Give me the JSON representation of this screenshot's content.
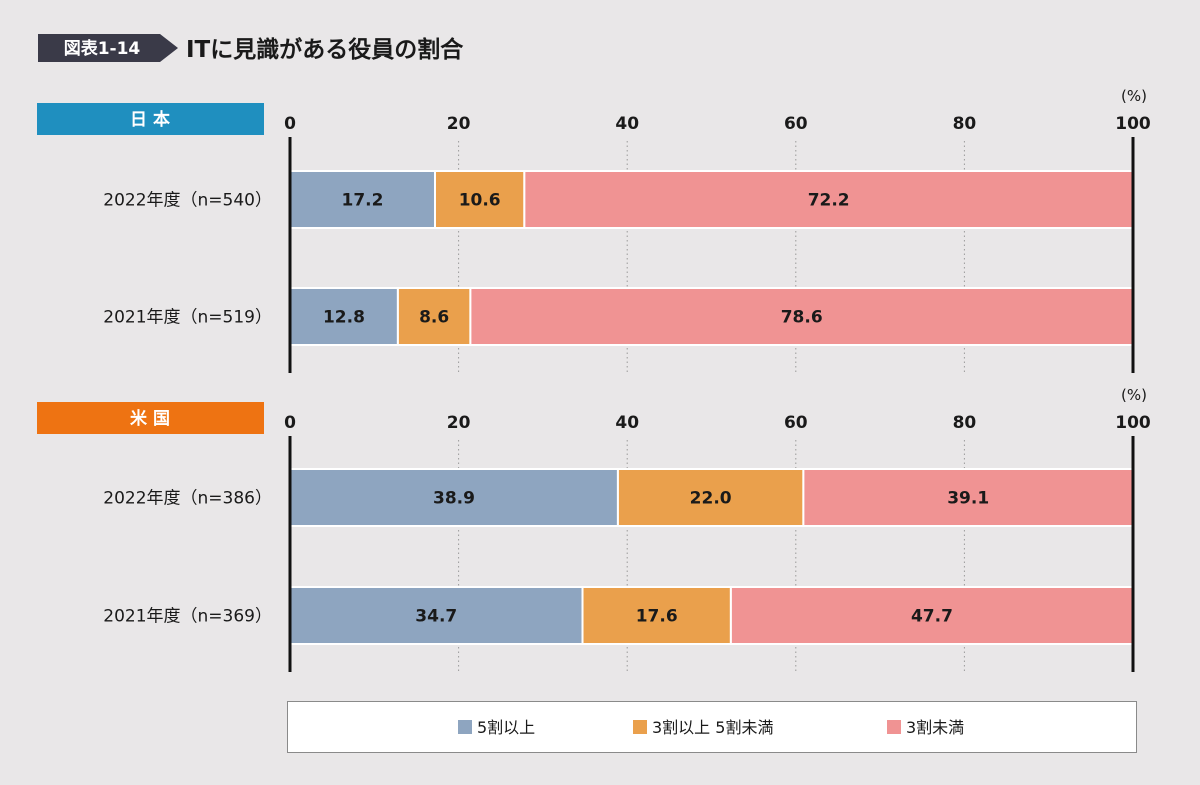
{
  "figure": {
    "label": "図表1-14",
    "title": "ITに見識がある役員の割合"
  },
  "colors": {
    "label_bg": "#3a3a48",
    "japan_header": "#1f8fbf",
    "us_header": "#ee7312",
    "series_5plus": "#8ea5c0",
    "series_3to5": "#eaa04c",
    "series_under3": "#f09393",
    "axis": "#111111",
    "grid": "#9a9a9a"
  },
  "chart_data": [
    {
      "type": "bar",
      "orientation": "horizontal",
      "stacked": true,
      "panel": "日 本",
      "unit": "(%)",
      "xlim": [
        0,
        100
      ],
      "ticks": [
        "0",
        "20",
        "40",
        "60",
        "80",
        "100"
      ],
      "tick_values": [
        0,
        20,
        40,
        60,
        80,
        100
      ],
      "categories": [
        "2022年度（n=540）",
        "2021年度（n=519）"
      ],
      "series": [
        {
          "name": "5割以上",
          "values": [
            17.2,
            12.8
          ],
          "labels": [
            "17.2",
            "12.8"
          ]
        },
        {
          "name": "3割以上 5割未満",
          "values": [
            10.6,
            8.6
          ],
          "labels": [
            "10.6",
            "8.6"
          ]
        },
        {
          "name": "3割未満",
          "values": [
            72.2,
            78.6
          ],
          "labels": [
            "72.2",
            "78.6"
          ]
        }
      ]
    },
    {
      "type": "bar",
      "orientation": "horizontal",
      "stacked": true,
      "panel": "米 国",
      "unit": "(%)",
      "xlim": [
        0,
        100
      ],
      "ticks": [
        "0",
        "20",
        "40",
        "60",
        "80",
        "100"
      ],
      "tick_values": [
        0,
        20,
        40,
        60,
        80,
        100
      ],
      "categories": [
        "2022年度（n=386）",
        "2021年度（n=369）"
      ],
      "series": [
        {
          "name": "5割以上",
          "values": [
            38.9,
            34.7
          ],
          "labels": [
            "38.9",
            "34.7"
          ]
        },
        {
          "name": "3割以上 5割未満",
          "values": [
            22.0,
            17.6
          ],
          "labels": [
            "22.0",
            "17.6"
          ]
        },
        {
          "name": "3割未満",
          "values": [
            39.1,
            47.7
          ],
          "labels": [
            "39.1",
            "47.7"
          ]
        }
      ]
    }
  ],
  "legend": [
    {
      "label": "5割以上"
    },
    {
      "label": "3割以上 5割未満"
    },
    {
      "label": "3割未満"
    }
  ]
}
